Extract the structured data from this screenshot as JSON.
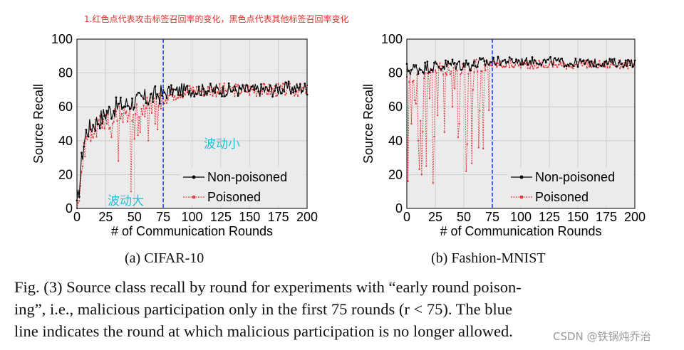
{
  "annotation": "1.红色点代表攻击标签召回率的变化，黑色点代表其他标签召回率变化",
  "overlay_labels": {
    "small_fluctuation": "波动小",
    "large_fluctuation": "波动大"
  },
  "caption": {
    "line1": "Fig. (3)   Source class recall by round for experiments with “early round poison-",
    "line2": "ing”, i.e., malicious participation only in the first 75 rounds (r < 75). The blue",
    "line3": "line indicates the round at which malicious participation is no longer allowed."
  },
  "watermark": "CSDN @铁锅炖乔治",
  "colors": {
    "non_poisoned": "#000000",
    "poisoned": "#e8383d",
    "vline": "#1a33ff",
    "grid": "#c8c8c8",
    "background": "#ebebeb"
  },
  "chart_data": [
    {
      "type": "line",
      "subcaption": "(a) CIFAR-10",
      "xlabel": "# of Communication Rounds",
      "ylabel": "Source Recall",
      "xlim": [
        0,
        200
      ],
      "ylim": [
        0,
        100
      ],
      "xticks": [
        0,
        25,
        50,
        75,
        100,
        125,
        150,
        175,
        200
      ],
      "yticks": [
        0,
        20,
        40,
        60,
        80,
        100
      ],
      "vline_x": 75,
      "legend": [
        "Non-poisoned",
        "Poisoned"
      ],
      "legend_position": "lower-right",
      "series": [
        {
          "name": "Non-poisoned",
          "x": [
            0,
            2,
            4,
            6,
            8,
            10,
            12,
            15,
            18,
            22,
            26,
            30,
            35,
            40,
            45,
            50,
            55,
            60,
            65,
            70,
            75,
            80,
            85,
            90,
            95,
            100,
            110,
            120,
            130,
            140,
            150,
            160,
            170,
            180,
            190,
            200
          ],
          "y": [
            0,
            12,
            28,
            38,
            45,
            47,
            48,
            50,
            52,
            54,
            57,
            58,
            60,
            61,
            62,
            63,
            64,
            65,
            66,
            67,
            68,
            69,
            69,
            70,
            70,
            70,
            70,
            70,
            70,
            70,
            70,
            70,
            70,
            71,
            71,
            71
          ]
        },
        {
          "name": "Poisoned",
          "x": [
            0,
            2,
            4,
            6,
            8,
            10,
            12,
            15,
            18,
            22,
            26,
            30,
            35,
            40,
            45,
            50,
            55,
            60,
            65,
            70,
            75,
            80,
            85,
            90,
            95,
            100,
            110,
            120,
            130,
            140,
            150,
            160,
            170,
            180,
            190,
            200
          ],
          "y": [
            0,
            8,
            22,
            33,
            40,
            44,
            45,
            46,
            48,
            50,
            52,
            53,
            55,
            56,
            57,
            58,
            59,
            60,
            61,
            62,
            65,
            67,
            68,
            69,
            69,
            70,
            70,
            70,
            70,
            70,
            70,
            70,
            70,
            70,
            70,
            70
          ]
        }
      ],
      "poisoned_dips": [
        {
          "x": 36,
          "y": 28
        },
        {
          "x": 47,
          "y": 10
        },
        {
          "x": 30,
          "y": 42
        },
        {
          "x": 55,
          "y": 45
        },
        {
          "x": 68,
          "y": 50
        }
      ]
    },
    {
      "type": "line",
      "subcaption": "(b) Fashion-MNIST",
      "xlabel": "# of Communication Rounds",
      "ylabel": "Source Recall",
      "xlim": [
        0,
        200
      ],
      "ylim": [
        0,
        100
      ],
      "xticks": [
        0,
        25,
        50,
        75,
        100,
        125,
        150,
        175,
        200
      ],
      "yticks": [
        0,
        20,
        40,
        60,
        80,
        100
      ],
      "vline_x": 75,
      "legend": [
        "Non-poisoned",
        "Poisoned"
      ],
      "legend_position": "lower-right",
      "series": [
        {
          "name": "Non-poisoned",
          "x": [
            0,
            5,
            10,
            15,
            20,
            25,
            30,
            40,
            50,
            60,
            70,
            75,
            80,
            90,
            100,
            110,
            120,
            130,
            140,
            150,
            160,
            170,
            180,
            190,
            200
          ],
          "y": [
            82,
            82,
            83,
            83,
            84,
            84,
            84,
            85,
            85,
            85,
            86,
            87,
            87,
            87,
            87,
            87,
            87,
            87,
            86,
            86,
            86,
            86,
            86,
            86,
            86
          ]
        },
        {
          "name": "Poisoned",
          "x": [
            0,
            5,
            10,
            15,
            20,
            25,
            30,
            40,
            50,
            60,
            70,
            75,
            80,
            90,
            100,
            110,
            120,
            130,
            140,
            150,
            160,
            170,
            180,
            190,
            200
          ],
          "y": [
            75,
            78,
            80,
            80,
            81,
            82,
            82,
            83,
            83,
            84,
            84,
            85,
            85,
            85,
            85,
            85,
            85,
            85,
            85,
            85,
            85,
            85,
            85,
            85,
            85
          ]
        }
      ],
      "poisoned_dips": [
        {
          "x": 1,
          "y": 16
        },
        {
          "x": 4,
          "y": 50
        },
        {
          "x": 7,
          "y": 13
        },
        {
          "x": 10,
          "y": 40
        },
        {
          "x": 13,
          "y": 20
        },
        {
          "x": 17,
          "y": 25
        },
        {
          "x": 20,
          "y": 38
        },
        {
          "x": 23,
          "y": 15
        },
        {
          "x": 27,
          "y": 55
        },
        {
          "x": 33,
          "y": 45
        },
        {
          "x": 40,
          "y": 60
        },
        {
          "x": 46,
          "y": 50
        },
        {
          "x": 53,
          "y": 38
        },
        {
          "x": 58,
          "y": 70
        },
        {
          "x": 64,
          "y": 62
        },
        {
          "x": 72,
          "y": 58
        }
      ]
    }
  ]
}
